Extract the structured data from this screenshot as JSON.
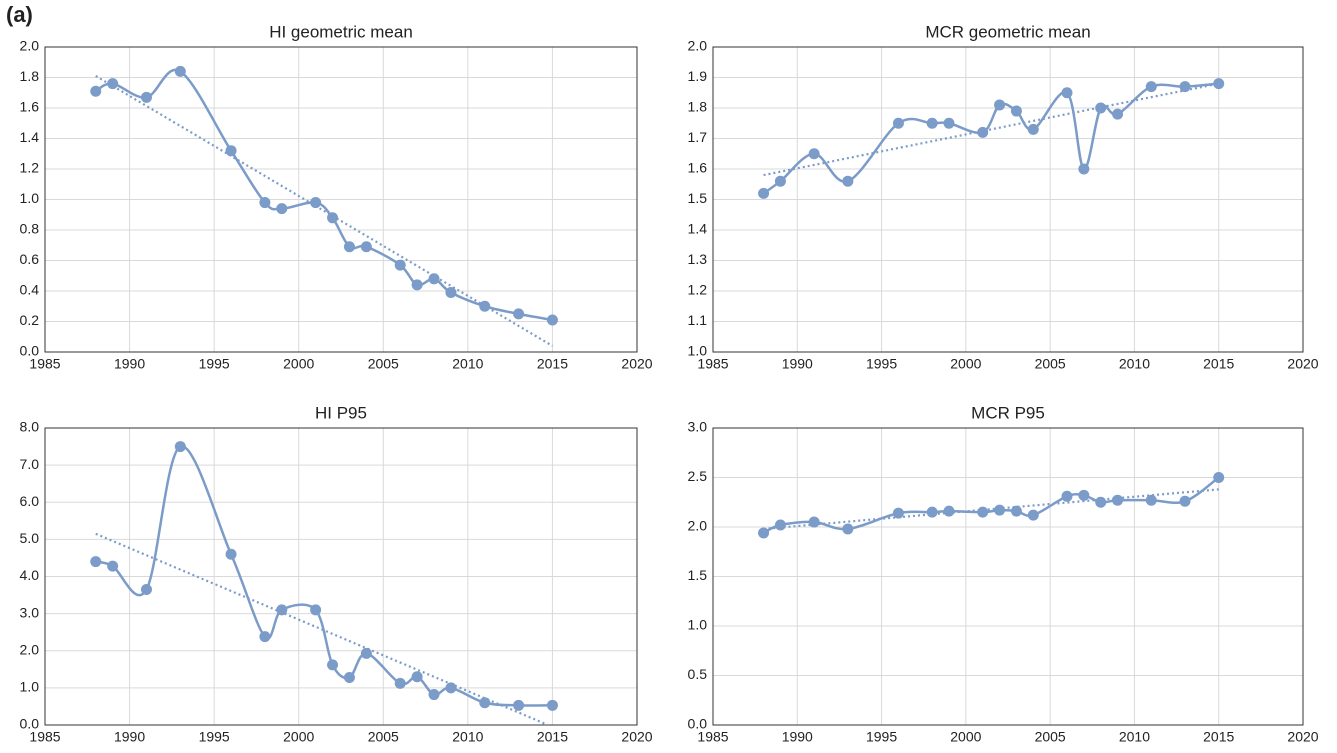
{
  "panel_label": "(a)",
  "chart_data": [
    {
      "type": "line",
      "title": "HI geometric mean",
      "x": [
        1988,
        1989,
        1991,
        1993,
        1996,
        1998,
        1999,
        2001,
        2002,
        2003,
        2004,
        2006,
        2007,
        2008,
        2009,
        2011,
        2013,
        2015
      ],
      "series": [
        {
          "color": "#7b9bc8",
          "values": [
            1.71,
            1.76,
            1.67,
            1.84,
            1.32,
            0.98,
            0.94,
            0.98,
            0.88,
            0.69,
            0.69,
            0.57,
            0.44,
            0.48,
            0.39,
            0.3,
            0.25,
            0.21
          ]
        }
      ],
      "trend": {
        "x": [
          1988,
          2015
        ],
        "values": [
          1.81,
          0.04
        ],
        "color": "#7b9bc8",
        "style": "dotted"
      },
      "xlim": [
        1985,
        2020
      ],
      "xticks": [
        1985,
        1990,
        1995,
        2000,
        2005,
        2010,
        2015,
        2020
      ],
      "ylim": [
        0,
        2
      ],
      "yticks": [
        {
          "value": 0,
          "label": "0.0"
        },
        0.2,
        0.4,
        0.6,
        0.8,
        {
          "value": 1,
          "label": "1.0"
        },
        1.2,
        1.4,
        1.6,
        1.8,
        {
          "value": 2,
          "label": "2.0"
        }
      ],
      "grid": true,
      "smooth": true,
      "marker": "circle"
    },
    {
      "type": "line",
      "title": "MCR geometric mean",
      "x": [
        1988,
        1989,
        1991,
        1993,
        1996,
        1998,
        1999,
        2001,
        2002,
        2003,
        2004,
        2006,
        2007,
        2008,
        2009,
        2011,
        2013,
        2015
      ],
      "series": [
        {
          "color": "#7b9bc8",
          "values": [
            1.52,
            1.56,
            1.65,
            1.56,
            1.75,
            1.75,
            1.75,
            1.72,
            1.81,
            1.79,
            1.73,
            1.85,
            1.6,
            1.8,
            1.78,
            1.87,
            1.87,
            1.88
          ]
        }
      ],
      "trend": {
        "x": [
          1988,
          2015
        ],
        "values": [
          1.58,
          1.88
        ],
        "color": "#7b9bc8",
        "style": "dotted"
      },
      "xlim": [
        1985,
        2020
      ],
      "xticks": [
        1985,
        1990,
        1995,
        2000,
        2005,
        2010,
        2015,
        2020
      ],
      "ylim": [
        1,
        2
      ],
      "yticks": [
        {
          "value": 1,
          "label": "1.0"
        },
        1.1,
        1.2,
        1.3,
        1.4,
        1.5,
        1.6,
        1.7,
        1.8,
        1.9,
        {
          "value": 2,
          "label": "2.0"
        }
      ],
      "grid": true,
      "smooth": true,
      "marker": "circle"
    },
    {
      "type": "line",
      "title": "HI P95",
      "x": [
        1988,
        1989,
        1991,
        1993,
        1996,
        1998,
        1999,
        2001,
        2002,
        2003,
        2004,
        2006,
        2007,
        2008,
        2009,
        2011,
        2013,
        2015
      ],
      "series": [
        {
          "color": "#7b9bc8",
          "values": [
            4.4,
            4.28,
            3.65,
            7.5,
            4.6,
            2.38,
            3.1,
            3.1,
            1.62,
            1.28,
            1.93,
            1.12,
            1.3,
            0.82,
            1.0,
            0.6,
            0.53,
            0.53
          ]
        }
      ],
      "trend": {
        "x": [
          1988,
          2015
        ],
        "values": [
          5.15,
          -0.05
        ],
        "color": "#7b9bc8",
        "style": "dotted"
      },
      "xlim": [
        1985,
        2020
      ],
      "xticks": [
        1985,
        1990,
        1995,
        2000,
        2005,
        2010,
        2015,
        2020
      ],
      "ylim": [
        0,
        8
      ],
      "yticks": [
        {
          "value": 0,
          "label": "0.0"
        },
        {
          "value": 1,
          "label": "1.0"
        },
        {
          "value": 2,
          "label": "2.0"
        },
        {
          "value": 3,
          "label": "3.0"
        },
        {
          "value": 4,
          "label": "4.0"
        },
        {
          "value": 5,
          "label": "5.0"
        },
        {
          "value": 6,
          "label": "6.0"
        },
        {
          "value": 7,
          "label": "7.0"
        },
        {
          "value": 8,
          "label": "8.0"
        }
      ],
      "grid": true,
      "smooth": true,
      "marker": "circle"
    },
    {
      "type": "line",
      "title": "MCR P95",
      "x": [
        1988,
        1989,
        1991,
        1993,
        1996,
        1998,
        1999,
        2001,
        2002,
        2003,
        2004,
        2006,
        2007,
        2008,
        2009,
        2011,
        2013,
        2015
      ],
      "series": [
        {
          "color": "#7b9bc8",
          "values": [
            1.94,
            2.02,
            2.05,
            1.98,
            2.14,
            2.15,
            2.16,
            2.15,
            2.17,
            2.16,
            2.12,
            2.31,
            2.32,
            2.25,
            2.27,
            2.27,
            2.26,
            2.5
          ]
        }
      ],
      "trend": {
        "x": [
          1988,
          2015
        ],
        "values": [
          1.98,
          2.38
        ],
        "color": "#7b9bc8",
        "style": "dotted"
      },
      "xlim": [
        1985,
        2020
      ],
      "xticks": [
        1985,
        1990,
        1995,
        2000,
        2005,
        2010,
        2015,
        2020
      ],
      "ylim": [
        0,
        3
      ],
      "yticks": [
        {
          "value": 0,
          "label": "0.0"
        },
        0.5,
        {
          "value": 1,
          "label": "1.0"
        },
        1.5,
        {
          "value": 2,
          "label": "2.0"
        },
        2.5,
        {
          "value": 3,
          "label": "3.0"
        }
      ],
      "grid": true,
      "smooth": true,
      "marker": "circle"
    }
  ]
}
